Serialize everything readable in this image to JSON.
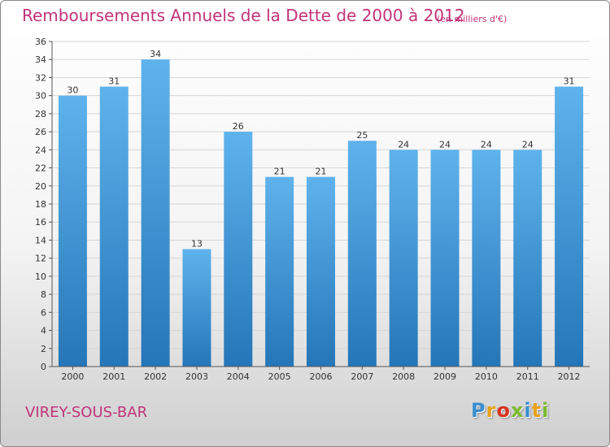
{
  "header": {
    "title": "Remboursements Annuels de la Dette de 2000 à 2012",
    "unit": "(en milliers d'€)"
  },
  "footer": {
    "commune": "VIREY-SOUS-BAR",
    "brand": [
      "P",
      "r",
      "o",
      "x",
      "i",
      "t",
      "i"
    ],
    "brand_colors": [
      "#3a8fd0",
      "#e8a21a",
      "#d8321f",
      "#7cb82f",
      "#3a8fd0",
      "#e8a21a",
      "#7cb82f"
    ]
  },
  "colors": {
    "bar_top": "#5fb3ec",
    "bar_bottom": "#2476b8",
    "title": "#c2337a",
    "grid": "#d6d6d6"
  },
  "chart_data": {
    "type": "bar",
    "title": "Remboursements Annuels de la Dette de 2000 à 2012",
    "subtitle": "(en milliers d'€)",
    "xlabel": "",
    "ylabel": "",
    "categories": [
      "2000",
      "2001",
      "2002",
      "2003",
      "2004",
      "2005",
      "2006",
      "2007",
      "2008",
      "2009",
      "2010",
      "2011",
      "2012"
    ],
    "values": [
      30,
      31,
      34,
      13,
      26,
      21,
      21,
      25,
      24,
      24,
      24,
      24,
      31
    ],
    "ylim": [
      0,
      36
    ],
    "yticks": [
      0,
      2,
      4,
      6,
      8,
      10,
      12,
      14,
      16,
      18,
      20,
      22,
      24,
      26,
      28,
      30,
      32,
      34,
      36
    ],
    "grid": true,
    "legend": "none"
  }
}
